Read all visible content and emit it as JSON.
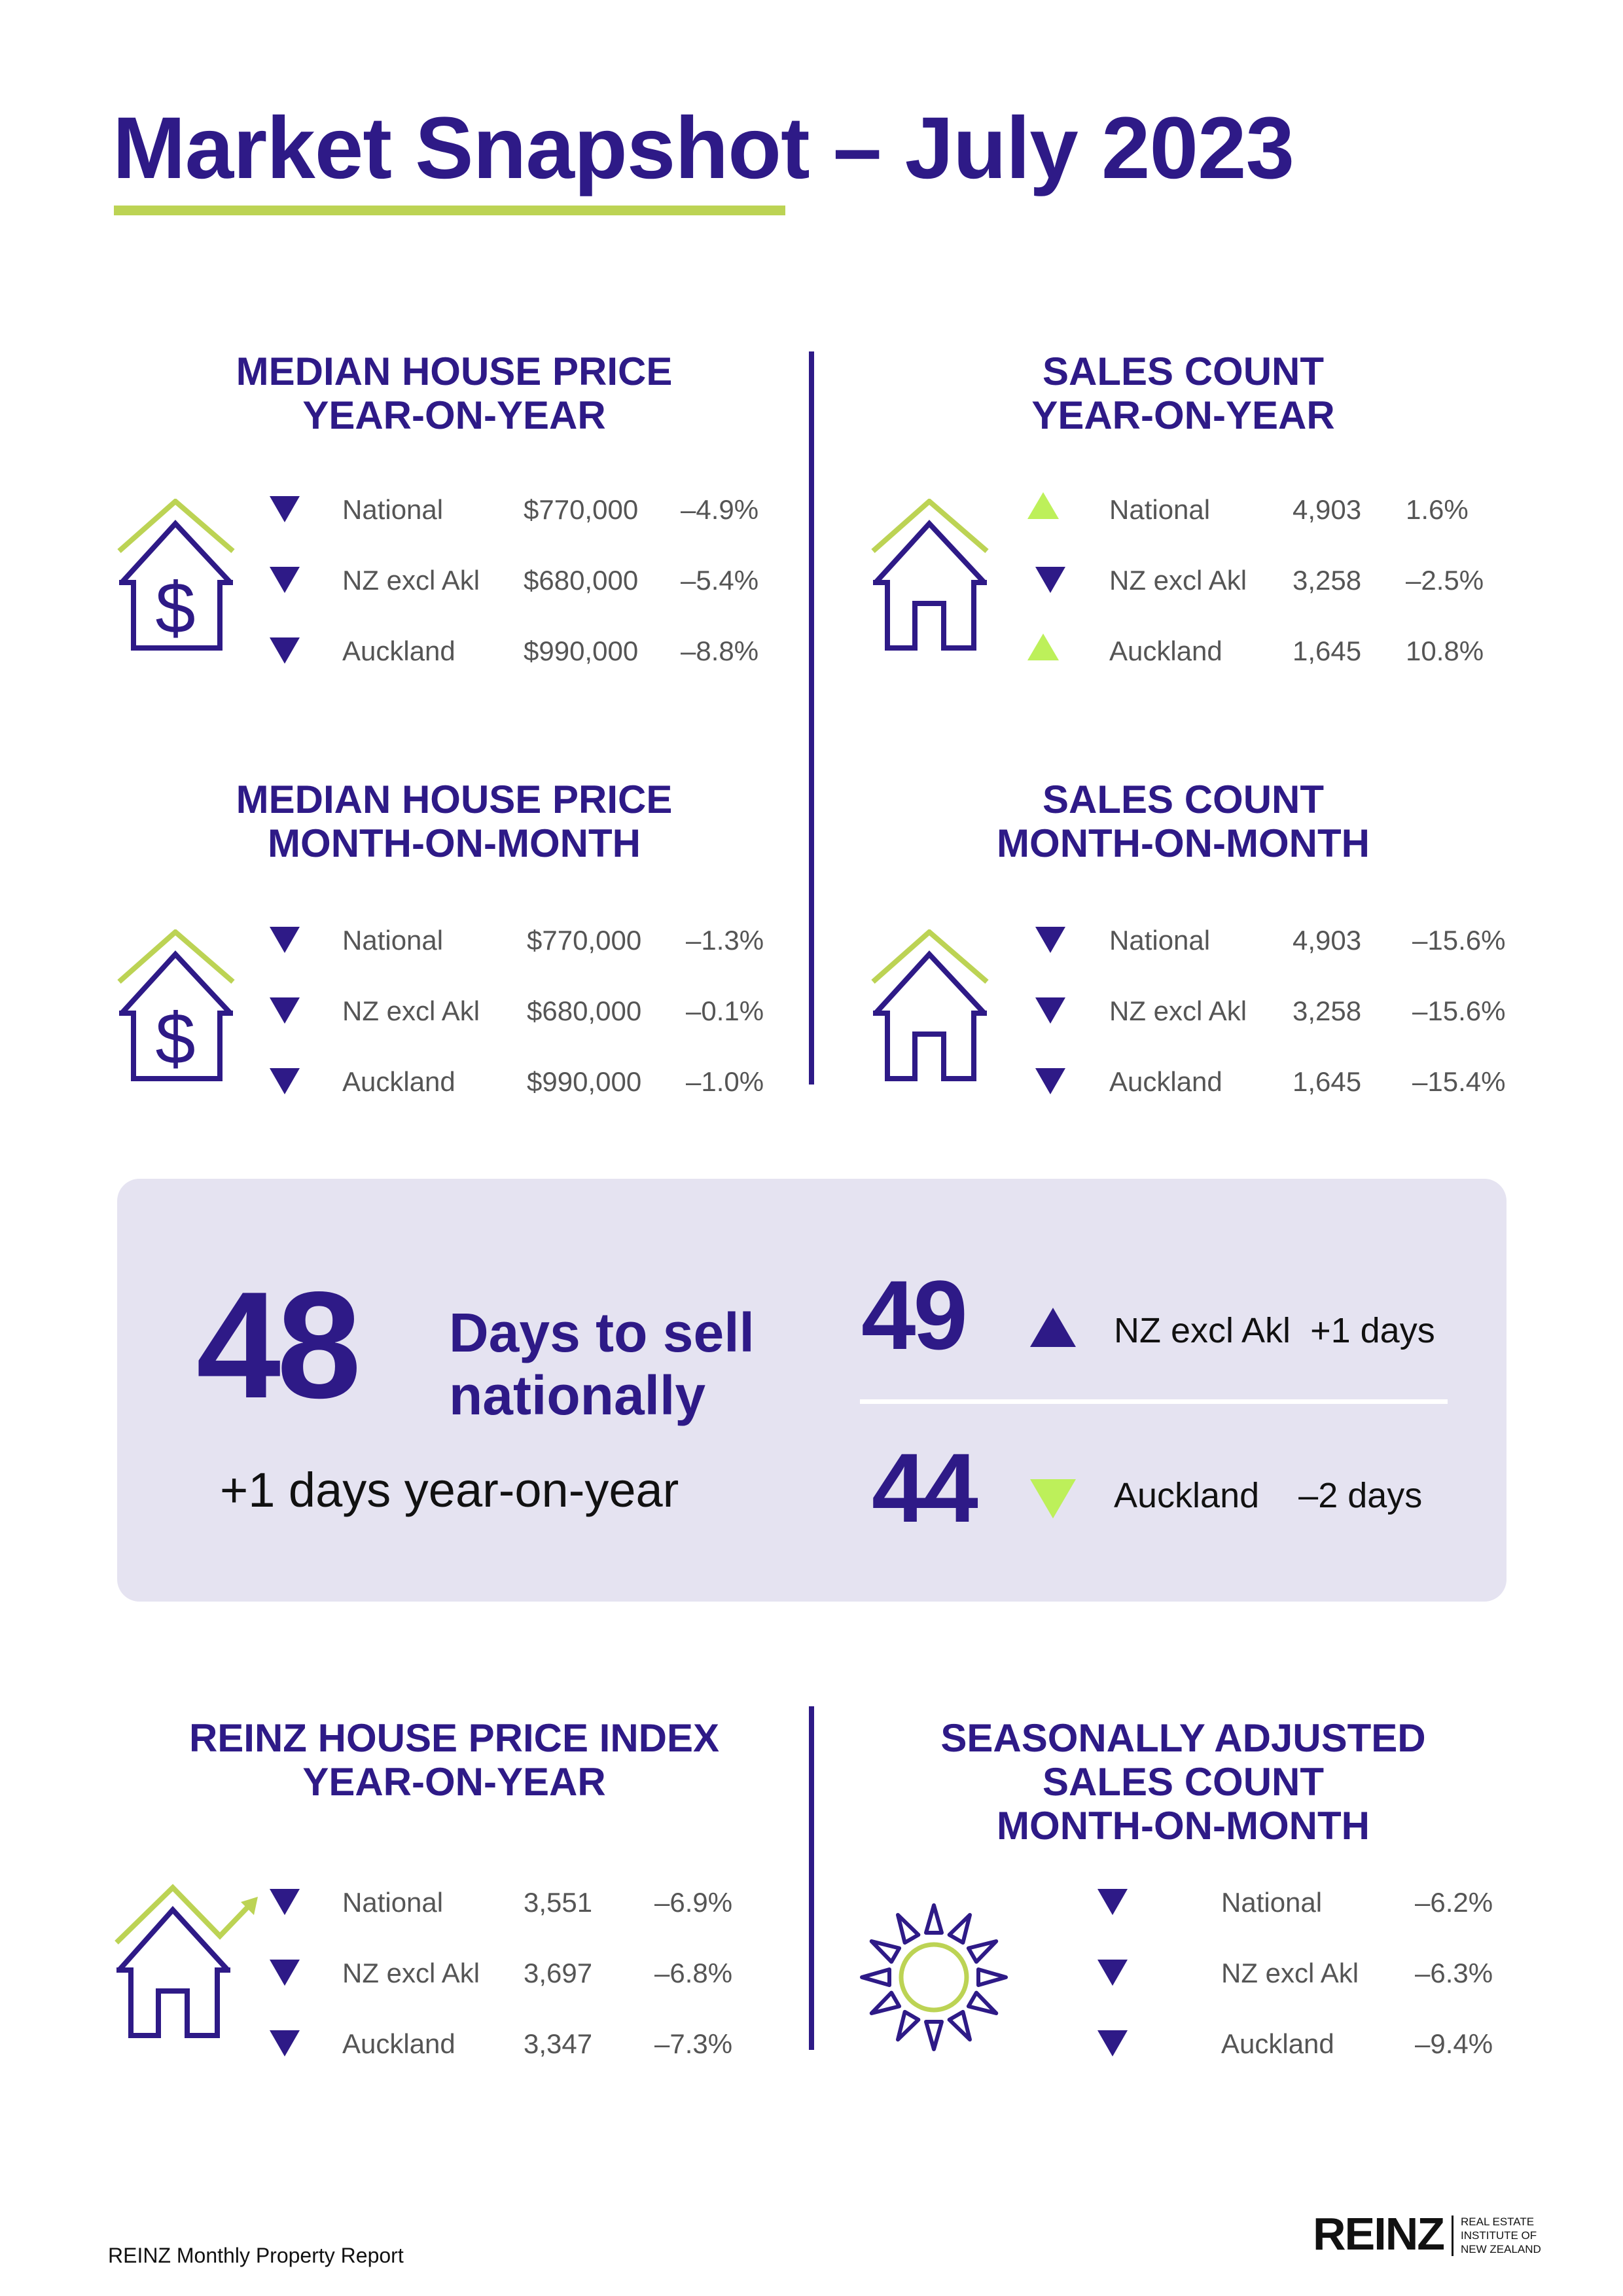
{
  "title": "Market Snapshot – July 2023",
  "colors": {
    "brand_purple": "#2e1a87",
    "accent_green": "#bcd354",
    "up_green": "#bdf05a",
    "panel_bg": "#e5e3f1",
    "body_text": "#555555"
  },
  "sections": {
    "median_yoy": {
      "heading_line1": "MEDIAN HOUSE PRICE",
      "heading_line2": "YEAR-ON-YEAR",
      "icon": "house-dollar-icon",
      "rows": [
        {
          "direction": "down",
          "region": "National",
          "value": "$770,000",
          "change": "–4.9%"
        },
        {
          "direction": "down",
          "region": "NZ excl Akl",
          "value": "$680,000",
          "change": "–5.4%"
        },
        {
          "direction": "down",
          "region": "Auckland",
          "value": "$990,000",
          "change": "–8.8%"
        }
      ]
    },
    "sales_yoy": {
      "heading_line1": "SALES COUNT",
      "heading_line2": "YEAR-ON-YEAR",
      "icon": "house-icon",
      "rows": [
        {
          "direction": "up",
          "region": "National",
          "value": "4,903",
          "change": "1.6%"
        },
        {
          "direction": "down",
          "region": "NZ excl Akl",
          "value": "3,258",
          "change": "–2.5%"
        },
        {
          "direction": "up",
          "region": "Auckland",
          "value": "1,645",
          "change": "10.8%"
        }
      ]
    },
    "median_mom": {
      "heading_line1": "MEDIAN HOUSE PRICE",
      "heading_line2": "MONTH-ON-MONTH",
      "icon": "house-dollar-icon",
      "rows": [
        {
          "direction": "down",
          "region": "National",
          "value": "$770,000",
          "change": "–1.3%"
        },
        {
          "direction": "down",
          "region": "NZ excl Akl",
          "value": "$680,000",
          "change": "–0.1%"
        },
        {
          "direction": "down",
          "region": "Auckland",
          "value": "$990,000",
          "change": "–1.0%"
        }
      ]
    },
    "sales_mom": {
      "heading_line1": "SALES COUNT",
      "heading_line2": "MONTH-ON-MONTH",
      "icon": "house-icon",
      "rows": [
        {
          "direction": "down",
          "region": "National",
          "value": "4,903",
          "change": "–15.6%"
        },
        {
          "direction": "down",
          "region": "NZ excl Akl",
          "value": "3,258",
          "change": "–15.6%"
        },
        {
          "direction": "down",
          "region": "Auckland",
          "value": "1,645",
          "change": "–15.4%"
        }
      ]
    },
    "hpi_yoy": {
      "heading_line1": "REINZ HOUSE PRICE INDEX",
      "heading_line2": "YEAR-ON-YEAR",
      "icon": "house-trend-icon",
      "rows": [
        {
          "direction": "down",
          "region": "National",
          "value": "3,551",
          "change": "–6.9%"
        },
        {
          "direction": "down",
          "region": "NZ excl Akl",
          "value": "3,697",
          "change": "–6.8%"
        },
        {
          "direction": "down",
          "region": "Auckland",
          "value": "3,347",
          "change": "–7.3%"
        }
      ]
    },
    "seasonal_mom": {
      "heading_line1": "SEASONALLY ADJUSTED",
      "heading_line2": "SALES COUNT",
      "heading_line3": "MONTH-ON-MONTH",
      "icon": "sun-icon",
      "rows": [
        {
          "direction": "down",
          "region": "National",
          "change": "–6.2%"
        },
        {
          "direction": "down",
          "region": "NZ excl Akl",
          "change": "–6.3%"
        },
        {
          "direction": "down",
          "region": "Auckland",
          "change": "–9.4%"
        }
      ]
    }
  },
  "days_to_sell": {
    "national_value": "48",
    "national_label_line1": "Days to sell",
    "national_label_line2": "nationally",
    "national_change": "+1 days year-on-year",
    "regions": [
      {
        "value": "49",
        "direction": "up",
        "region": "NZ excl Akl",
        "change": "+1 days"
      },
      {
        "value": "44",
        "direction": "down",
        "region": "Auckland",
        "change": "–2 days"
      }
    ]
  },
  "footer": {
    "report_name": "REINZ Monthly Property Report",
    "logo_word": "REINZ",
    "logo_line1": "REAL ESTATE",
    "logo_line2": "INSTITUTE OF",
    "logo_line3": "NEW ZEALAND"
  }
}
